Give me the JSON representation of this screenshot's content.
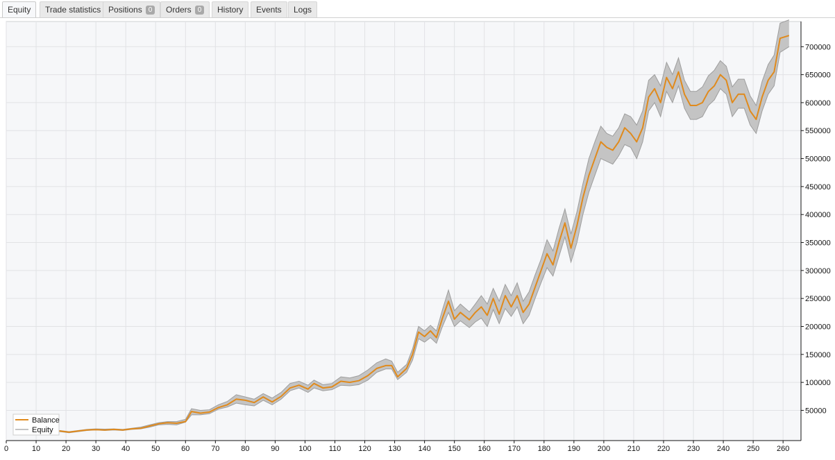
{
  "tabs": [
    {
      "label": "Equity",
      "active": true
    },
    {
      "label": "Trade statistics"
    },
    {
      "label": "Positions",
      "badge": "0"
    },
    {
      "label": "Orders",
      "badge": "0"
    },
    {
      "label": "History"
    },
    {
      "label": "Events"
    },
    {
      "label": "Logs"
    }
  ],
  "colors": {
    "balance": "#e08a1c",
    "equity_band": "#c4c4c4",
    "equity_line": "#9d9d9d",
    "plot_bg": "#f6f7f9",
    "grid": "#e1e2e5"
  },
  "chart_data": {
    "type": "line",
    "x_ticks": [
      0,
      10,
      20,
      30,
      40,
      50,
      60,
      70,
      80,
      90,
      100,
      110,
      120,
      130,
      140,
      150,
      160,
      170,
      180,
      190,
      200,
      210,
      220,
      230,
      240,
      250,
      260
    ],
    "y_ticks": [
      50000,
      100000,
      150000,
      200000,
      250000,
      300000,
      350000,
      400000,
      450000,
      500000,
      550000,
      600000,
      650000,
      700000
    ],
    "x_range": [
      0,
      266
    ],
    "y_range": [
      -4000,
      745000
    ],
    "grid": true,
    "legend_position": "bottom-left",
    "series": [
      {
        "name": "Balance",
        "values": [
          [
            15,
            12000
          ],
          [
            18,
            13000
          ],
          [
            21,
            11000
          ],
          [
            24,
            13000
          ],
          [
            27,
            15000
          ],
          [
            30,
            15500
          ],
          [
            33,
            15000
          ],
          [
            36,
            16000
          ],
          [
            39,
            15000
          ],
          [
            42,
            17000
          ],
          [
            45,
            18000
          ],
          [
            48,
            22000
          ],
          [
            51,
            26000
          ],
          [
            54,
            28000
          ],
          [
            57,
            27000
          ],
          [
            60,
            30000
          ],
          [
            62,
            48000
          ],
          [
            65,
            45000
          ],
          [
            68,
            47000
          ],
          [
            71,
            55000
          ],
          [
            74,
            60000
          ],
          [
            77,
            70000
          ],
          [
            80,
            68000
          ],
          [
            83,
            64000
          ],
          [
            86,
            74000
          ],
          [
            89,
            65000
          ],
          [
            92,
            75000
          ],
          [
            95,
            90000
          ],
          [
            98,
            95000
          ],
          [
            101,
            88000
          ],
          [
            103,
            98000
          ],
          [
            106,
            90000
          ],
          [
            109,
            92000
          ],
          [
            112,
            102000
          ],
          [
            115,
            100000
          ],
          [
            118,
            103000
          ],
          [
            121,
            112000
          ],
          [
            124,
            125000
          ],
          [
            127,
            130000
          ],
          [
            129,
            130000
          ],
          [
            131,
            110000
          ],
          [
            134,
            125000
          ],
          [
            136,
            150000
          ],
          [
            138,
            190000
          ],
          [
            140,
            182000
          ],
          [
            142,
            192000
          ],
          [
            144,
            180000
          ],
          [
            146,
            215000
          ],
          [
            148,
            245000
          ],
          [
            150,
            213000
          ],
          [
            152,
            225000
          ],
          [
            155,
            212000
          ],
          [
            157,
            225000
          ],
          [
            159,
            235000
          ],
          [
            161,
            220000
          ],
          [
            163,
            250000
          ],
          [
            165,
            222000
          ],
          [
            167,
            255000
          ],
          [
            169,
            235000
          ],
          [
            171,
            255000
          ],
          [
            173,
            225000
          ],
          [
            175,
            240000
          ],
          [
            177,
            270000
          ],
          [
            179,
            300000
          ],
          [
            181,
            330000
          ],
          [
            183,
            310000
          ],
          [
            185,
            350000
          ],
          [
            187,
            385000
          ],
          [
            189,
            340000
          ],
          [
            191,
            380000
          ],
          [
            193,
            430000
          ],
          [
            195,
            470000
          ],
          [
            197,
            500000
          ],
          [
            199,
            530000
          ],
          [
            201,
            520000
          ],
          [
            203,
            515000
          ],
          [
            205,
            530000
          ],
          [
            207,
            555000
          ],
          [
            209,
            545000
          ],
          [
            211,
            530000
          ],
          [
            213,
            555000
          ],
          [
            215,
            610000
          ],
          [
            217,
            625000
          ],
          [
            219,
            600000
          ],
          [
            221,
            645000
          ],
          [
            223,
            625000
          ],
          [
            225,
            655000
          ],
          [
            227,
            615000
          ],
          [
            229,
            595000
          ],
          [
            231,
            595000
          ],
          [
            233,
            600000
          ],
          [
            235,
            620000
          ],
          [
            237,
            630000
          ],
          [
            239,
            650000
          ],
          [
            241,
            640000
          ],
          [
            243,
            600000
          ],
          [
            245,
            615000
          ],
          [
            247,
            615000
          ],
          [
            249,
            585000
          ],
          [
            251,
            570000
          ],
          [
            253,
            610000
          ],
          [
            255,
            640000
          ],
          [
            257,
            655000
          ],
          [
            259,
            715000
          ],
          [
            262,
            720000
          ]
        ]
      },
      {
        "name": "Equity",
        "values": [
          [
            15,
            12000,
            13000
          ],
          [
            18,
            12000,
            14000
          ],
          [
            21,
            10000,
            12000
          ],
          [
            24,
            12000,
            14000
          ],
          [
            27,
            14000,
            16000
          ],
          [
            30,
            15000,
            17000
          ],
          [
            33,
            14000,
            16500
          ],
          [
            36,
            15000,
            17000
          ],
          [
            39,
            14000,
            16000
          ],
          [
            42,
            16000,
            18000
          ],
          [
            45,
            17000,
            20000
          ],
          [
            48,
            20000,
            24000
          ],
          [
            51,
            24000,
            28000
          ],
          [
            54,
            25000,
            30000
          ],
          [
            57,
            24000,
            30000
          ],
          [
            60,
            29000,
            34000
          ],
          [
            62,
            42000,
            53000
          ],
          [
            65,
            42000,
            50000
          ],
          [
            68,
            44000,
            51000
          ],
          [
            71,
            52000,
            60000
          ],
          [
            74,
            56000,
            66000
          ],
          [
            77,
            63000,
            78000
          ],
          [
            80,
            60000,
            74000
          ],
          [
            83,
            58000,
            70000
          ],
          [
            86,
            68000,
            80000
          ],
          [
            89,
            60000,
            72000
          ],
          [
            92,
            70000,
            82000
          ],
          [
            95,
            85000,
            98000
          ],
          [
            98,
            90000,
            102000
          ],
          [
            101,
            82000,
            95000
          ],
          [
            103,
            90000,
            104000
          ],
          [
            106,
            85000,
            96000
          ],
          [
            109,
            87000,
            98000
          ],
          [
            112,
            95000,
            110000
          ],
          [
            115,
            94000,
            108000
          ],
          [
            118,
            96000,
            112000
          ],
          [
            121,
            104000,
            122000
          ],
          [
            124,
            118000,
            135000
          ],
          [
            127,
            124000,
            142000
          ],
          [
            129,
            124000,
            138000
          ],
          [
            131,
            105000,
            118000
          ],
          [
            134,
            118000,
            132000
          ],
          [
            136,
            140000,
            160000
          ],
          [
            138,
            178000,
            200000
          ],
          [
            140,
            172000,
            192000
          ],
          [
            142,
            180000,
            202000
          ],
          [
            144,
            170000,
            192000
          ],
          [
            146,
            200000,
            230000
          ],
          [
            148,
            225000,
            265000
          ],
          [
            150,
            200000,
            228000
          ],
          [
            152,
            210000,
            240000
          ],
          [
            155,
            198000,
            226000
          ],
          [
            157,
            208000,
            240000
          ],
          [
            159,
            215000,
            255000
          ],
          [
            161,
            200000,
            240000
          ],
          [
            163,
            230000,
            268000
          ],
          [
            165,
            205000,
            245000
          ],
          [
            167,
            232000,
            275000
          ],
          [
            169,
            218000,
            255000
          ],
          [
            171,
            235000,
            278000
          ],
          [
            173,
            205000,
            245000
          ],
          [
            175,
            220000,
            262000
          ],
          [
            177,
            250000,
            292000
          ],
          [
            179,
            278000,
            320000
          ],
          [
            181,
            305000,
            355000
          ],
          [
            183,
            290000,
            335000
          ],
          [
            185,
            325000,
            375000
          ],
          [
            187,
            360000,
            410000
          ],
          [
            189,
            315000,
            365000
          ],
          [
            191,
            350000,
            405000
          ],
          [
            193,
            400000,
            455000
          ],
          [
            195,
            440000,
            500000
          ],
          [
            197,
            470000,
            530000
          ],
          [
            199,
            500000,
            558000
          ],
          [
            201,
            495000,
            545000
          ],
          [
            203,
            490000,
            540000
          ],
          [
            205,
            505000,
            555000
          ],
          [
            207,
            525000,
            580000
          ],
          [
            209,
            520000,
            575000
          ],
          [
            211,
            500000,
            560000
          ],
          [
            213,
            530000,
            585000
          ],
          [
            215,
            585000,
            640000
          ],
          [
            217,
            600000,
            650000
          ],
          [
            219,
            575000,
            630000
          ],
          [
            221,
            620000,
            672000
          ],
          [
            223,
            600000,
            650000
          ],
          [
            225,
            630000,
            680000
          ],
          [
            227,
            590000,
            640000
          ],
          [
            229,
            570000,
            620000
          ],
          [
            231,
            570000,
            620000
          ],
          [
            233,
            575000,
            628000
          ],
          [
            235,
            595000,
            648000
          ],
          [
            237,
            605000,
            658000
          ],
          [
            239,
            625000,
            675000
          ],
          [
            241,
            615000,
            665000
          ],
          [
            243,
            575000,
            628000
          ],
          [
            245,
            590000,
            642000
          ],
          [
            247,
            590000,
            642000
          ],
          [
            249,
            560000,
            612000
          ],
          [
            251,
            545000,
            595000
          ],
          [
            253,
            585000,
            638000
          ],
          [
            255,
            615000,
            668000
          ],
          [
            257,
            630000,
            685000
          ],
          [
            259,
            690000,
            742000
          ],
          [
            262,
            700000,
            748000
          ]
        ]
      }
    ]
  }
}
